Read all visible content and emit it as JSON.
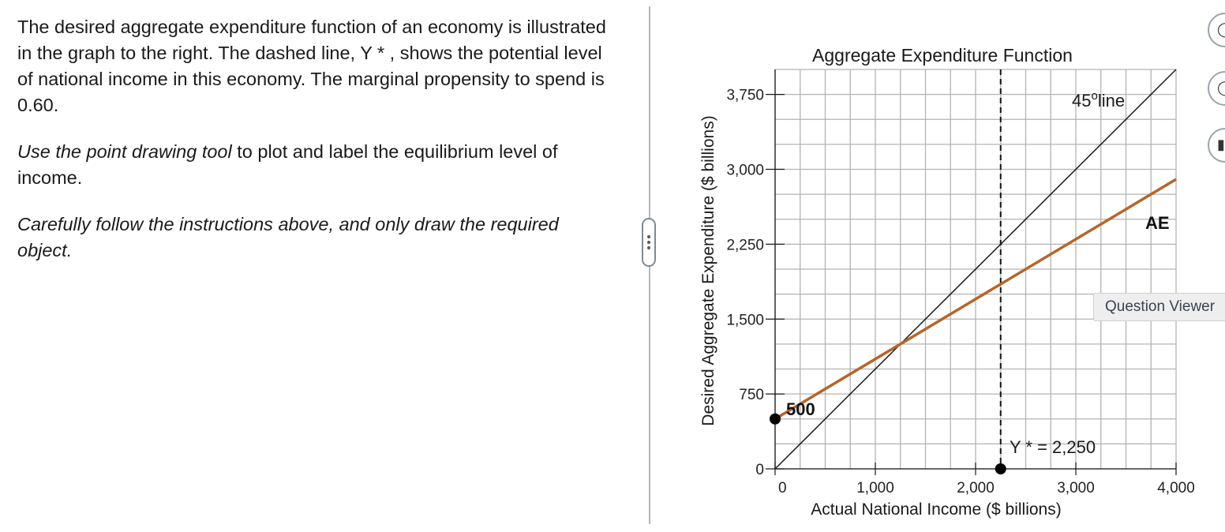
{
  "question": {
    "paragraph1": "The desired aggregate expenditure function of an economy is illustrated in the graph to the right. The dashed line, Y * , shows the potential level of national income in this economy. The marginal propensity to spend is 0.60.",
    "paragraph2_em": "Use the point drawing tool",
    "paragraph2_rest": " to plot and label the equilibrium level of income.",
    "paragraph3": "Carefully follow the instructions above, and only draw the required object."
  },
  "tooltip": "Question Viewer",
  "toolbar": {
    "icons": [
      "circle-tool-icon",
      "point-tool-icon",
      "line-tool-icon"
    ]
  },
  "chart_data": {
    "type": "line",
    "title": "Aggregate Expenditure Function",
    "xlabel": "Actual National Income ($ billions)",
    "ylabel": "Desired Aggregate Expenditure ($ billions)",
    "xlim": [
      0,
      4000
    ],
    "ylim": [
      0,
      4000
    ],
    "x_ticks": [
      0,
      1000,
      2000,
      3000,
      4000
    ],
    "x_tick_labels": [
      "0",
      "1,000",
      "2,000",
      "3,000",
      "4,000"
    ],
    "y_ticks": [
      0,
      750,
      1500,
      2250,
      3000,
      3750
    ],
    "y_tick_labels": [
      "0",
      "750",
      "1,500",
      "2,250",
      "3,000",
      "3,750"
    ],
    "grid_step": 250,
    "grid": true,
    "series": [
      {
        "name": "45° line",
        "label_main": "45",
        "label_sup": "o",
        "label_rest": "line",
        "x": [
          0,
          4000
        ],
        "y": [
          0,
          4000
        ],
        "color": "#1a1a1a"
      },
      {
        "name": "AE",
        "x": [
          0,
          4000
        ],
        "y": [
          500,
          2900
        ],
        "color": "#b5652b"
      }
    ],
    "potential_output": {
      "label_main": "Y *",
      "label_rest": " = 2,250",
      "x": 2250
    },
    "points": [
      {
        "x": 0,
        "y": 500,
        "label": "500"
      },
      {
        "x": 2250,
        "y": 0
      }
    ],
    "colors": {
      "ae_line": "#b5652b",
      "grid": "#b3b3b3",
      "axis": "#1a1a1a"
    }
  }
}
